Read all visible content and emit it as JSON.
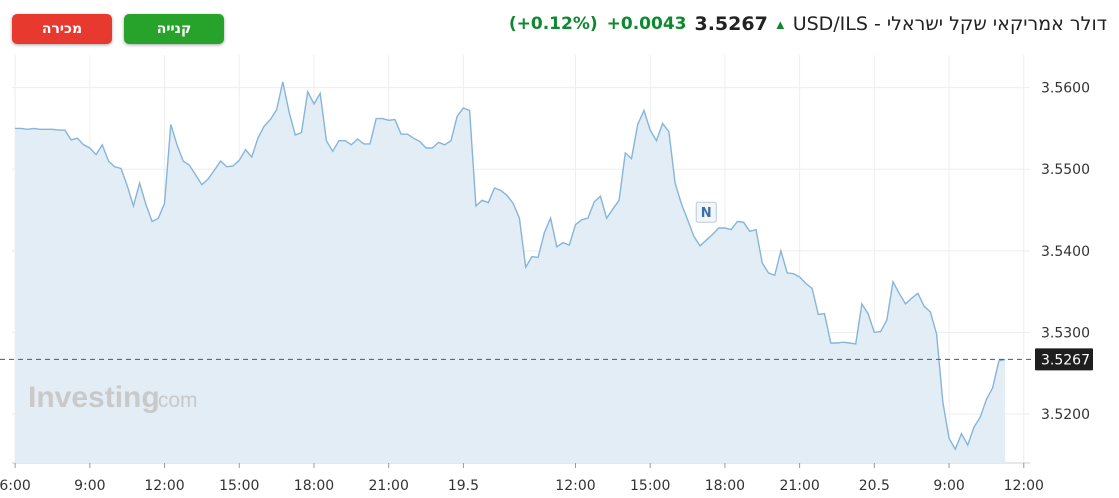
{
  "buttons": {
    "sell_label": "מכירה",
    "buy_label": "קנייה"
  },
  "header": {
    "title": "USD/ILS - דולר אמריקאי שקל ישראלי",
    "price": "3.5267",
    "change": "+0.0043",
    "change_pct": "(+0.12%)",
    "arrow_icon": "up-arrow-icon",
    "up_color": "#0d8a2f"
  },
  "watermark": {
    "brand": "Investing",
    "suffix": ".com"
  },
  "news_marker": {
    "label": "N",
    "t": 111
  },
  "chart_data": {
    "type": "area",
    "current_value": 3.5267,
    "current_label": "3.5267",
    "ylim": [
      3.514,
      3.564
    ],
    "y_ticks": [
      3.52,
      3.53,
      3.54,
      3.55,
      3.56
    ],
    "y_tick_labels": [
      "3.5200",
      "3.5300",
      "3.5400",
      "3.5500",
      "3.5600"
    ],
    "x_range": [
      -0.5,
      163
    ],
    "x_ticks": [
      {
        "t": 0,
        "label": "6:00"
      },
      {
        "t": 12,
        "label": "9:00"
      },
      {
        "t": 24,
        "label": "12:00"
      },
      {
        "t": 36,
        "label": "15:00"
      },
      {
        "t": 48,
        "label": "18:00"
      },
      {
        "t": 60,
        "label": "21:00"
      },
      {
        "t": 72,
        "label": "19.5"
      },
      {
        "t": 90,
        "label": "12:00"
      },
      {
        "t": 102,
        "label": "15:00"
      },
      {
        "t": 114,
        "label": "18:00"
      },
      {
        "t": 126,
        "label": "21:00"
      },
      {
        "t": 138,
        "label": "20.5"
      },
      {
        "t": 150,
        "label": "9:00"
      },
      {
        "t": 162,
        "label": "12:00"
      }
    ],
    "series": [
      {
        "values": [
          3.555,
          3.555,
          3.5549,
          3.555,
          3.5549,
          3.5549,
          3.5549,
          3.5548,
          3.5548,
          3.5536,
          3.5538,
          3.553,
          3.5526,
          3.5518,
          3.553,
          3.551,
          3.5503,
          3.5501,
          3.548,
          3.5455,
          3.5483,
          3.5457,
          3.5436,
          3.544,
          3.5458,
          3.5555,
          3.553,
          3.551,
          3.5505,
          3.5493,
          3.5481,
          3.5488,
          3.5499,
          3.551,
          3.5503,
          3.5504,
          3.5511,
          3.5524,
          3.5515,
          3.5538,
          3.5553,
          3.5561,
          3.5573,
          3.5607,
          3.557,
          3.5542,
          3.5545,
          3.5595,
          3.558,
          3.5593,
          3.5535,
          3.5522,
          3.5535,
          3.5535,
          3.553,
          3.5537,
          3.5531,
          3.5531,
          3.5562,
          3.5562,
          3.556,
          3.5561,
          3.5543,
          3.5543,
          3.5538,
          3.5534,
          3.5526,
          3.5526,
          3.5533,
          3.553,
          3.5535,
          3.5565,
          3.5575,
          3.5572,
          3.5455,
          3.5462,
          3.5459,
          3.5477,
          3.5474,
          3.5468,
          3.5458,
          3.544,
          3.538,
          3.5393,
          3.5392,
          3.5422,
          3.544,
          3.5405,
          3.541,
          3.5407,
          3.5432,
          3.5438,
          3.544,
          3.546,
          3.5467,
          3.544,
          3.5451,
          3.5462,
          3.552,
          3.5513,
          3.5555,
          3.5572,
          3.5548,
          3.5535,
          3.5556,
          3.5546,
          3.5483,
          3.5458,
          3.5438,
          3.5418,
          3.5406,
          3.5413,
          3.542,
          3.5428,
          3.5428,
          3.5426,
          3.5436,
          3.5435,
          3.5424,
          3.5426,
          3.5385,
          3.5373,
          3.537,
          3.54,
          3.5373,
          3.5372,
          3.5368,
          3.536,
          3.5354,
          3.5322,
          3.5323,
          3.5287,
          3.5287,
          3.5288,
          3.5287,
          3.5286,
          3.5335,
          3.5323,
          3.53,
          3.5301,
          3.5315,
          3.5362,
          3.5348,
          3.5335,
          3.5342,
          3.5348,
          3.5332,
          3.5325,
          3.5298,
          3.5215,
          3.517,
          3.5157,
          3.5176,
          3.5162,
          3.5184,
          3.5196,
          3.5218,
          3.5232,
          3.5265,
          3.5267
        ]
      }
    ]
  },
  "colors": {
    "line": "#86b5d8",
    "fill": "#e3edf6",
    "grid": "#eeeeee",
    "dash": "#555555",
    "label_bg": "#1e1e1e"
  }
}
